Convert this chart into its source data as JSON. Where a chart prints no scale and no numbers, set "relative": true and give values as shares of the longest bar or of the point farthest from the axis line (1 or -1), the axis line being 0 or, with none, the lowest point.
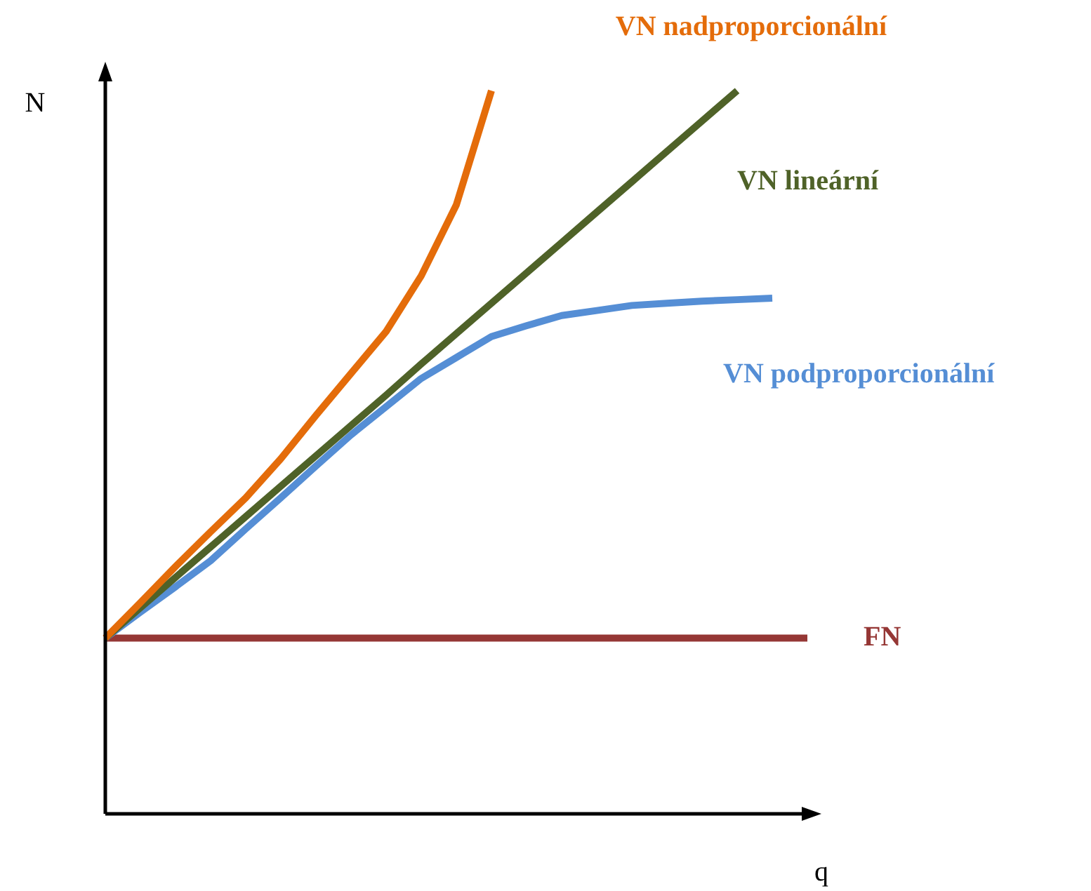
{
  "chart_data": {
    "type": "line",
    "relative": true,
    "xlabel": "q",
    "ylabel": "N",
    "legend": false,
    "marker": "none",
    "line_style": "solid",
    "categories": [
      null,
      null,
      null,
      null,
      null,
      null,
      null,
      null,
      null,
      null,
      null,
      null,
      null,
      null,
      null,
      null,
      null,
      null,
      null,
      null,
      null
    ],
    "series": [
      {
        "name": "VN nadproporcionální",
        "color": "#e46c0a",
        "values": [
          0.243,
          0.292,
          0.342,
          0.39,
          0.437,
          0.491,
          0.551,
          0.609,
          0.667,
          0.744,
          0.842,
          1,
          null,
          null,
          null,
          null,
          null,
          null,
          null,
          null,
          null
        ]
      },
      {
        "name": "VN lineární",
        "color": "#4f6228",
        "values": [
          0.243,
          0.285,
          0.327,
          0.369,
          0.411,
          0.453,
          0.495,
          0.537,
          0.579,
          0.622,
          0.664,
          0.706,
          0.748,
          0.79,
          0.832,
          0.874,
          0.916,
          0.958,
          1,
          null,
          null
        ]
      },
      {
        "name": "VN podproporcionální",
        "color": "#558ed5",
        "values": [
          0.243,
          0.279,
          0.314,
          0.35,
          0.394,
          0.437,
          0.481,
          0.524,
          0.563,
          0.602,
          0.631,
          0.66,
          0.675,
          0.689,
          0.696,
          0.703,
          0.706,
          0.709,
          0.711,
          0.713,
          null
        ]
      },
      {
        "name": "FN",
        "color": "#953735",
        "values": [
          0.243,
          0.243,
          0.243,
          0.243,
          0.243,
          0.243,
          0.243,
          0.243,
          0.243,
          0.243,
          0.243,
          0.243,
          0.243,
          0.243,
          0.243,
          0.243,
          0.243,
          0.243,
          0.243,
          0.243,
          0.243
        ]
      }
    ]
  }
}
